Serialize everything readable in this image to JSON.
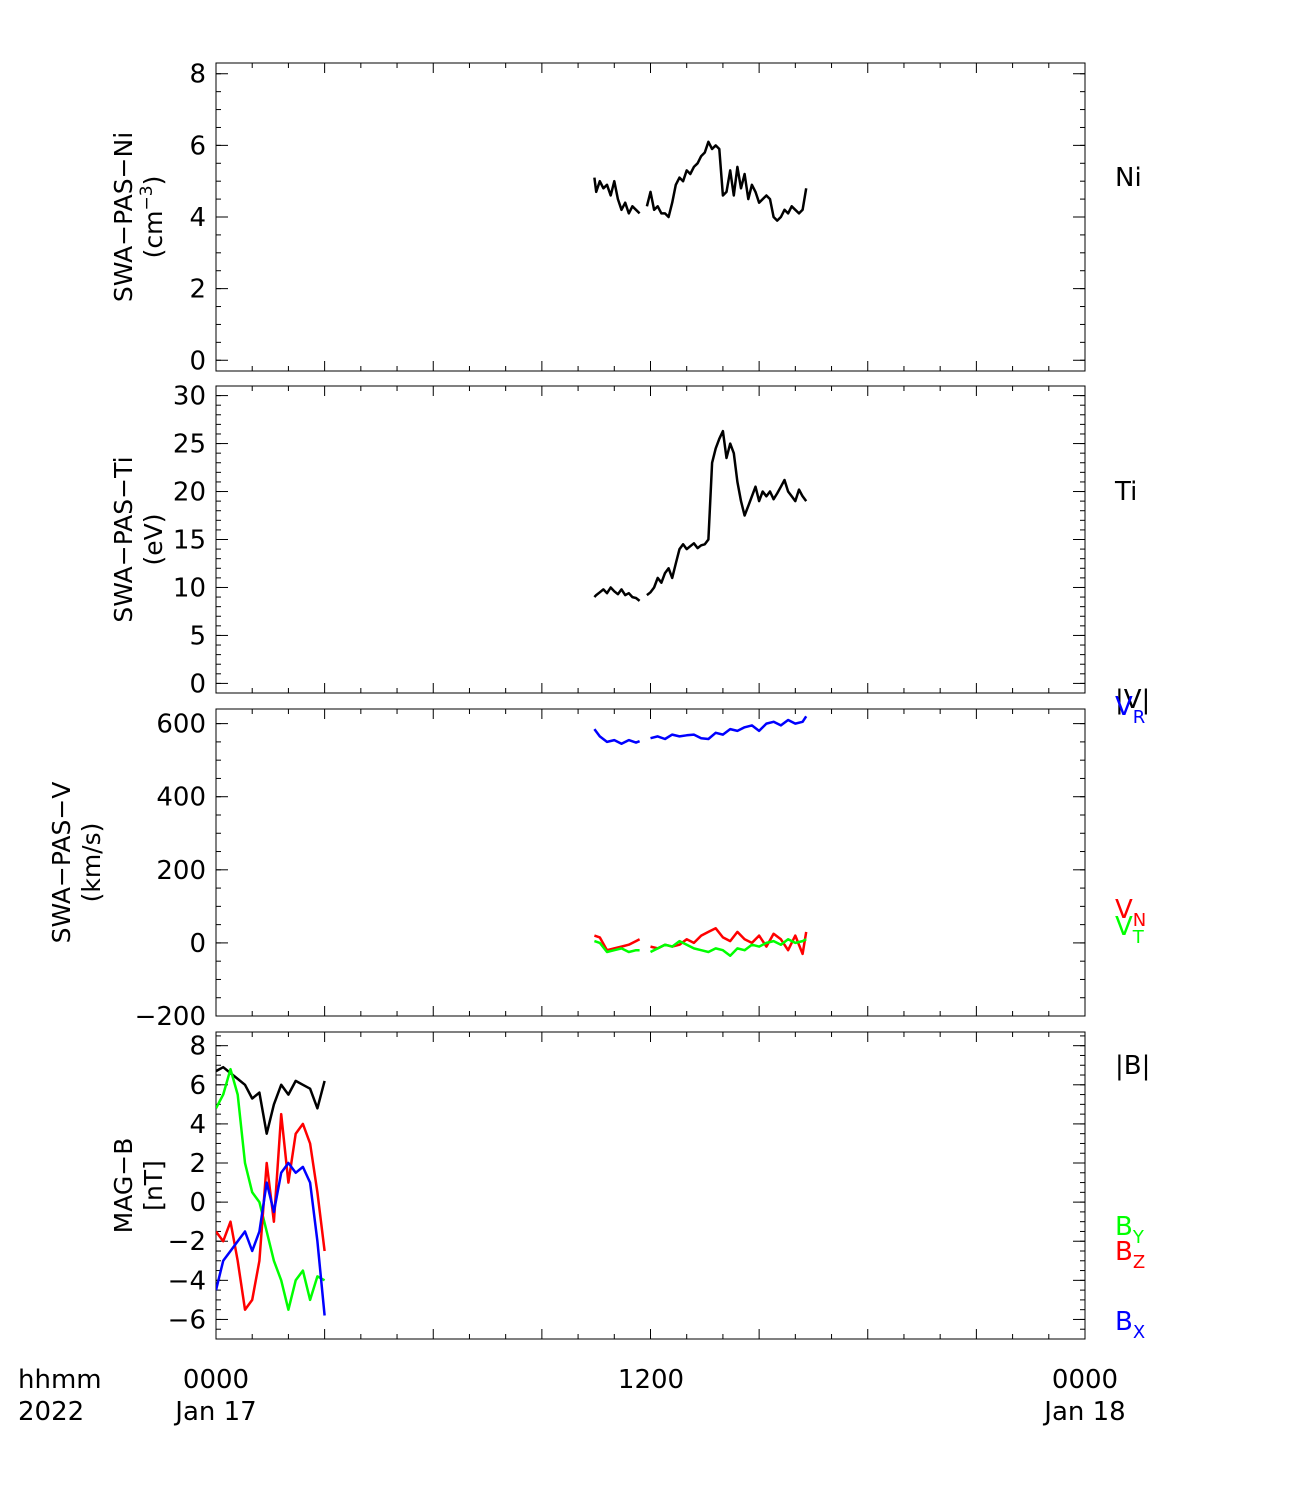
{
  "time_axis": {
    "tick_labels": [
      "0000",
      "1200",
      "0000"
    ],
    "date_labels": [
      "Jan 17",
      "",
      "Jan 18"
    ],
    "row_label_1": "hhmm",
    "row_label_2": "2022"
  },
  "chart_data": [
    {
      "type": "line",
      "panel": "Ni",
      "ylabel_line1": "SWA−PAS−Ni",
      "ylabel_line2": "(cm",
      "ylabel_sup": "−3",
      "ylabel_close": ")",
      "ylim": [
        -0.3,
        8.3
      ],
      "yticks": [
        0,
        2,
        4,
        6,
        8
      ],
      "ytick_labels": [
        "0",
        "2",
        "4",
        "6",
        "8"
      ],
      "xlim": [
        0,
        24
      ],
      "series": [
        {
          "name": "Ni",
          "color": "#000000",
          "x": [
            10.45,
            10.5,
            10.6,
            10.7,
            10.8,
            10.9,
            11.0,
            11.1,
            11.2,
            11.3,
            11.4,
            11.5,
            11.6,
            11.7,
            11.8,
            11.9,
            12.0,
            12.1,
            12.2,
            12.3,
            12.4,
            12.5,
            12.6,
            12.7,
            12.8,
            12.9,
            13.0,
            13.1,
            13.2,
            13.3,
            13.4,
            13.5,
            13.6,
            13.7,
            13.8,
            13.9,
            14.0,
            14.1,
            14.2,
            14.3,
            14.4,
            14.5,
            14.6,
            14.7,
            14.8,
            14.9,
            15.0,
            15.1,
            15.2,
            15.3,
            15.4,
            15.5,
            15.6,
            15.7,
            15.8,
            15.9,
            16.0,
            16.1,
            16.2,
            16.3
          ],
          "y": [
            5.1,
            4.7,
            5.0,
            4.8,
            4.9,
            4.6,
            5.0,
            4.5,
            4.2,
            4.4,
            4.1,
            4.3,
            4.2,
            4.1,
            null,
            4.3,
            4.7,
            4.2,
            4.3,
            4.1,
            4.1,
            4.0,
            4.4,
            4.9,
            5.1,
            5.0,
            5.3,
            5.2,
            5.4,
            5.5,
            5.7,
            5.8,
            6.1,
            5.9,
            6.0,
            5.9,
            4.6,
            4.7,
            5.3,
            4.6,
            5.4,
            4.8,
            5.2,
            4.5,
            4.9,
            4.7,
            4.4,
            4.5,
            4.6,
            4.5,
            4.0,
            3.9,
            4.0,
            4.2,
            4.1,
            4.3,
            4.2,
            4.1,
            4.2,
            4.8
          ]
        }
      ],
      "legend": [
        {
          "label": "Ni",
          "color": "#000000"
        }
      ]
    },
    {
      "type": "line",
      "panel": "Ti",
      "ylabel_line1": "SWA−PAS−Ti",
      "ylabel_line2": "(eV)",
      "ylim": [
        -1,
        31
      ],
      "yticks": [
        0,
        5,
        10,
        15,
        20,
        25,
        30
      ],
      "ytick_labels": [
        "0",
        "5",
        "10",
        "15",
        "20",
        "25",
        "30"
      ],
      "xlim": [
        0,
        24
      ],
      "series": [
        {
          "name": "Ti",
          "color": "#000000",
          "x": [
            10.45,
            10.5,
            10.6,
            10.7,
            10.8,
            10.9,
            11.0,
            11.1,
            11.2,
            11.3,
            11.4,
            11.5,
            11.6,
            11.7,
            11.8,
            11.9,
            12.0,
            12.1,
            12.2,
            12.3,
            12.4,
            12.5,
            12.6,
            12.7,
            12.8,
            12.9,
            13.0,
            13.1,
            13.2,
            13.3,
            13.4,
            13.5,
            13.6,
            13.7,
            13.8,
            13.9,
            14.0,
            14.1,
            14.2,
            14.3,
            14.4,
            14.5,
            14.6,
            14.7,
            14.8,
            14.9,
            15.0,
            15.1,
            15.2,
            15.3,
            15.4,
            15.5,
            15.6,
            15.7,
            15.8,
            15.9,
            16.0,
            16.1,
            16.2,
            16.3
          ],
          "y": [
            9.0,
            9.2,
            9.5,
            9.8,
            9.4,
            10.0,
            9.6,
            9.3,
            9.8,
            9.2,
            9.4,
            9.0,
            8.9,
            8.6,
            null,
            9.2,
            9.5,
            10.0,
            11.0,
            10.5,
            11.5,
            12.0,
            11.0,
            12.5,
            14.0,
            14.5,
            14.0,
            14.3,
            14.6,
            14.1,
            14.4,
            14.5,
            15.0,
            23.0,
            24.5,
            25.5,
            26.3,
            23.5,
            25.0,
            24.0,
            21.0,
            19.0,
            17.5,
            18.5,
            19.5,
            20.5,
            19.0,
            20.0,
            19.5,
            20.0,
            19.2,
            19.8,
            20.5,
            21.2,
            20.0,
            19.5,
            19.0,
            20.2,
            19.5,
            19.0
          ]
        }
      ],
      "legend": [
        {
          "label": "Ti",
          "color": "#000000"
        }
      ]
    },
    {
      "type": "line",
      "panel": "V",
      "ylabel_line1": "SWA−PAS−V",
      "ylabel_line2": "(km/s)",
      "ylim": [
        -200,
        640
      ],
      "yticks": [
        -200,
        0,
        200,
        400,
        600
      ],
      "ytick_labels": [
        "−200",
        "0",
        "200",
        "400",
        "600"
      ],
      "xlim": [
        0,
        24
      ],
      "series": [
        {
          "name": "V_R",
          "color": "#0000ff",
          "x": [
            10.45,
            10.6,
            10.8,
            11.0,
            11.2,
            11.4,
            11.6,
            11.7,
            11.8,
            12.0,
            12.2,
            12.4,
            12.6,
            12.8,
            13.0,
            13.2,
            13.4,
            13.6,
            13.8,
            14.0,
            14.2,
            14.4,
            14.6,
            14.8,
            15.0,
            15.2,
            15.4,
            15.6,
            15.8,
            16.0,
            16.2,
            16.3
          ],
          "y": [
            585,
            565,
            550,
            555,
            545,
            555,
            548,
            552,
            null,
            560,
            565,
            558,
            570,
            565,
            568,
            570,
            560,
            558,
            575,
            570,
            585,
            580,
            590,
            595,
            580,
            600,
            605,
            595,
            610,
            600,
            605,
            620
          ]
        },
        {
          "name": "V_N",
          "color": "#ff0000",
          "x": [
            10.45,
            10.6,
            10.8,
            11.0,
            11.2,
            11.4,
            11.6,
            11.7,
            11.8,
            12.0,
            12.2,
            12.4,
            12.6,
            12.8,
            13.0,
            13.2,
            13.4,
            13.6,
            13.8,
            14.0,
            14.2,
            14.4,
            14.6,
            14.8,
            15.0,
            15.2,
            15.4,
            15.6,
            15.8,
            16.0,
            16.2,
            16.3
          ],
          "y": [
            20,
            15,
            -20,
            -15,
            -10,
            -5,
            5,
            10,
            null,
            -10,
            -15,
            -5,
            -10,
            -5,
            10,
            0,
            20,
            30,
            40,
            15,
            5,
            30,
            10,
            0,
            20,
            -10,
            25,
            10,
            -20,
            20,
            -30,
            30
          ]
        },
        {
          "name": "V_T",
          "color": "#00ff00",
          "x": [
            10.45,
            10.6,
            10.8,
            11.0,
            11.2,
            11.4,
            11.6,
            11.7,
            11.8,
            12.0,
            12.2,
            12.4,
            12.6,
            12.8,
            13.0,
            13.2,
            13.4,
            13.6,
            13.8,
            14.0,
            14.2,
            14.4,
            14.6,
            14.8,
            15.0,
            15.2,
            15.4,
            15.6,
            15.8,
            16.0,
            16.2,
            16.3
          ],
          "y": [
            5,
            0,
            -25,
            -20,
            -15,
            -25,
            -20,
            -20,
            null,
            -25,
            -15,
            -5,
            -10,
            5,
            -5,
            -15,
            -20,
            -25,
            -15,
            -20,
            -35,
            -15,
            -20,
            -5,
            -10,
            0,
            5,
            -5,
            10,
            0,
            5,
            10
          ]
        }
      ],
      "legend": [
        {
          "label": "|V|",
          "color": "#000000"
        },
        {
          "label": "V",
          "sub": "R",
          "color": "#0000ff"
        },
        {
          "label": "V",
          "sub": "N",
          "color": "#ff0000"
        },
        {
          "label": "V",
          "sub": "T",
          "color": "#00ff00"
        }
      ]
    },
    {
      "type": "line",
      "panel": "B",
      "ylabel_line1": "MAG−B",
      "ylabel_line2": "[nT]",
      "ylim": [
        -7,
        8.7
      ],
      "yticks": [
        -6,
        -4,
        -2,
        0,
        2,
        4,
        6,
        8
      ],
      "ytick_labels": [
        "−6",
        "−4",
        "−2",
        "0",
        "2",
        "4",
        "6",
        "8"
      ],
      "xlim": [
        0,
        24
      ],
      "series": [
        {
          "name": "|B|",
          "color": "#000000",
          "x": [
            0.0,
            0.2,
            0.4,
            0.6,
            0.8,
            1.0,
            1.2,
            1.4,
            1.6,
            1.8,
            2.0,
            2.2,
            2.4,
            2.6,
            2.8,
            3.0
          ],
          "y": [
            6.7,
            6.9,
            6.6,
            6.3,
            6.0,
            5.3,
            5.6,
            3.5,
            5.0,
            6.0,
            5.5,
            6.2,
            6.0,
            5.8,
            4.8,
            6.2
          ]
        },
        {
          "name": "B_Y",
          "color": "#00ff00",
          "x": [
            0.0,
            0.2,
            0.4,
            0.6,
            0.8,
            1.0,
            1.2,
            1.4,
            1.6,
            1.8,
            2.0,
            2.2,
            2.4,
            2.6,
            2.8,
            3.0
          ],
          "y": [
            4.8,
            5.5,
            6.8,
            5.5,
            2.0,
            0.5,
            0.0,
            -1.5,
            -3.0,
            -4.0,
            -5.5,
            -4.0,
            -3.5,
            -5.0,
            -3.8,
            -4.0
          ]
        },
        {
          "name": "B_Z",
          "color": "#ff0000",
          "x": [
            0.0,
            0.2,
            0.4,
            0.6,
            0.8,
            1.0,
            1.2,
            1.4,
            1.6,
            1.8,
            2.0,
            2.2,
            2.4,
            2.6,
            2.8,
            3.0
          ],
          "y": [
            -1.5,
            -2.0,
            -1.0,
            -3.0,
            -5.5,
            -5.0,
            -3.0,
            2.0,
            -1.0,
            4.5,
            1.0,
            3.5,
            4.0,
            3.0,
            0.5,
            -2.5
          ]
        },
        {
          "name": "B_X",
          "color": "#0000ff",
          "x": [
            0.0,
            0.2,
            0.4,
            0.6,
            0.8,
            1.0,
            1.2,
            1.4,
            1.6,
            1.8,
            2.0,
            2.2,
            2.4,
            2.6,
            2.8,
            3.0
          ],
          "y": [
            -4.5,
            -3.0,
            -2.5,
            -2.0,
            -1.5,
            -2.5,
            -1.5,
            1.0,
            -0.5,
            1.5,
            2.0,
            1.5,
            1.8,
            1.0,
            -2.0,
            -5.8
          ]
        }
      ],
      "legend": [
        {
          "label": "|B|",
          "color": "#000000"
        },
        {
          "label": "B",
          "sub": "Y",
          "color": "#00ff00"
        },
        {
          "label": "B",
          "sub": "Z",
          "color": "#ff0000"
        },
        {
          "label": "B",
          "sub": "X",
          "color": "#0000ff"
        }
      ]
    }
  ]
}
